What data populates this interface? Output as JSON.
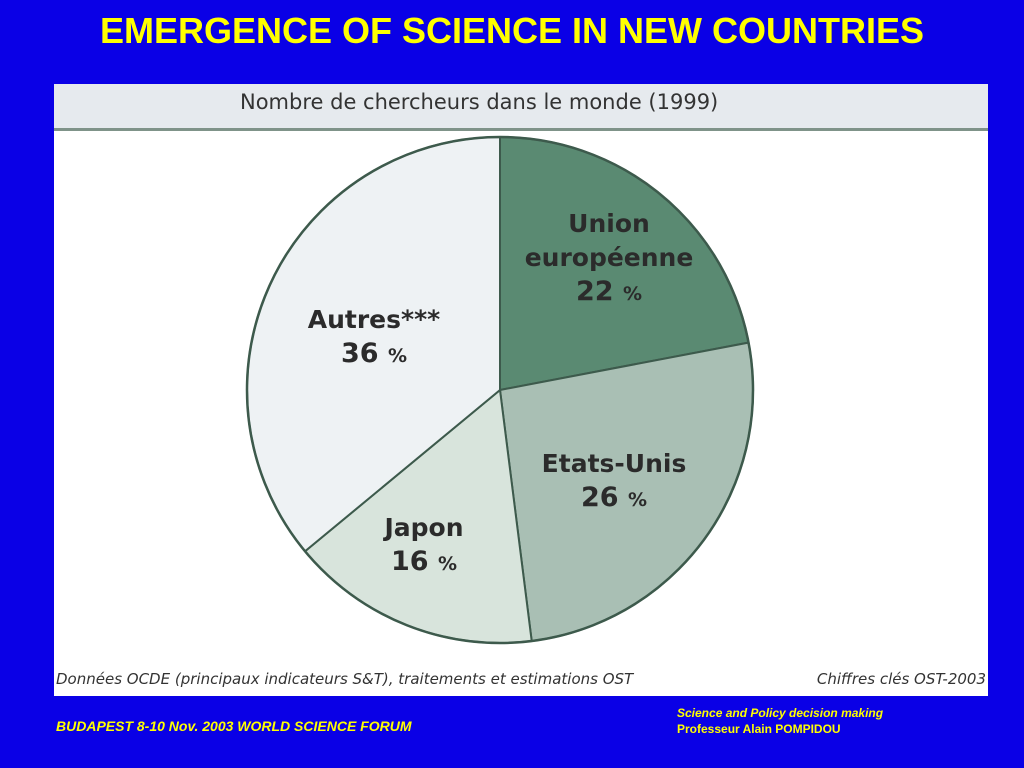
{
  "slide": {
    "title": "EMERGENCE OF SCIENCE IN NEW COUNTRIES",
    "footer_left": "BUDAPEST 8-10 Nov. 2003  WORLD SCIENCE FORUM",
    "footer_right_line1": "Science and Policy decision making",
    "footer_right_line2": "Professeur Alain POMPIDOU"
  },
  "figure": {
    "source_left": "Données OCDE (principaux indicateurs S&T), traitements et estimations OST",
    "source_right": "Chiffres clés OST-2003"
  },
  "colors": {
    "background": "#0a00e6",
    "title": "#ffff00",
    "union": "#5a8a72",
    "usa": "#a9bfb4",
    "japan": "#d8e4dc",
    "others": "#eef2f4"
  },
  "chart_data": {
    "type": "pie",
    "title": "Nombre de chercheurs dans le monde (1999)",
    "slices": [
      {
        "label_lines": [
          "Union",
          "européenne"
        ],
        "value": 22,
        "value_text": "22",
        "unit": "%",
        "color": "#5a8a72"
      },
      {
        "label_lines": [
          "Etats-Unis"
        ],
        "value": 26,
        "value_text": "26",
        "unit": "%",
        "color": "#a9bfb4"
      },
      {
        "label_lines": [
          "Japon"
        ],
        "value": 16,
        "value_text": "16",
        "unit": "%",
        "color": "#d8e4dc"
      },
      {
        "label_lines": [
          "Autres***"
        ],
        "value": 36,
        "value_text": "36",
        "unit": "%",
        "color": "#eef2f4"
      }
    ]
  }
}
